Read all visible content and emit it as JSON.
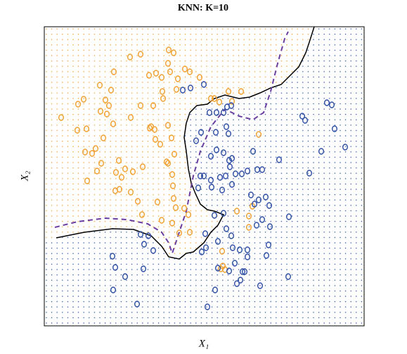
{
  "chart_data": {
    "type": "scatter",
    "title": "KNN: K=10",
    "xlabel": "X₁",
    "ylabel": "X₂",
    "xlim": [
      0,
      455
    ],
    "ylim": [
      0,
      425
    ],
    "series": [
      {
        "color": "#f0a030",
        "x": [
          24,
          48,
          56,
          47,
          60,
          58,
          68,
          73,
          84,
          61,
          75,
          81,
          80,
          92,
          89,
          98,
          79,
          99,
          122,
          137,
          149,
          159,
          167,
          155,
          168,
          169,
          177,
          184,
          176,
          179,
          188,
          190,
          200,
          207,
          221,
          123,
          137,
          150,
          152,
          157,
          158,
          176,
          181,
          165,
          174,
          176,
          185,
          182,
          183,
          106,
          102,
          115,
          126,
          140,
          107,
          101,
          110,
          123,
          133,
          139,
          161,
          184,
          187,
          199,
          205,
          182,
          167,
          192,
          207,
          242,
          249,
          262,
          267,
          280,
          305,
          291,
          296,
          291,
          274,
          253,
          254,
          251,
          257,
          237,
          95,
          87
        ],
        "y": [
          296,
          315,
          322,
          278,
          280,
          247,
          245,
          252,
          267,
          206,
          220,
          231,
          305,
          313,
          301,
          287,
          342,
          361,
          382,
          386,
          356,
          359,
          353,
          313,
          333,
          323,
          392,
          388,
          373,
          361,
          336,
          351,
          365,
          361,
          353,
          296,
          313,
          281,
          283,
          279,
          265,
          285,
          267,
          258,
          233,
          231,
          244,
          215,
          199,
          235,
          218,
          223,
          219,
          226,
          194,
          192,
          211,
          190,
          177,
          158,
          176,
          181,
          168,
          167,
          158,
          146,
          150,
          132,
          133,
          323,
          318,
          333,
          319,
          333,
          272,
          156,
          170,
          140,
          163,
          106,
          85,
          81,
          80,
          323,
          335,
          321
        ]
      },
      {
        "color": "#2e4fa3",
        "x": [
          197,
          208,
          227,
          235,
          245,
          255,
          260,
          266,
          223,
          244,
          259,
          245,
          255,
          237,
          263,
          264,
          272,
          250,
          258,
          238,
          237,
          227,
          219,
          253,
          267,
          281,
          289,
          303,
          310,
          294,
          299,
          305,
          315,
          320,
          310,
          302,
          321,
          348,
          334,
          367,
          371,
          402,
          409,
          413,
          394,
          377,
          428,
          137,
          148,
          142,
          155,
          97,
          101,
          115,
          141,
          98,
          132,
          232,
          243,
          247,
          263,
          271,
          285,
          279,
          274,
          282,
          278,
          289,
          289,
          268,
          266,
          247,
          259,
          230,
          224,
          229,
          319,
          316,
          307,
          347,
          267,
          222,
          216,
          262,
          297,
          242,
          255
        ],
        "y": [
          335,
          338,
          343,
          303,
          303,
          303,
          311,
          313,
          275,
          275,
          283,
          250,
          246,
          241,
          235,
          226,
          216,
          211,
          213,
          197,
          207,
          213,
          196,
          193,
          201,
          216,
          220,
          222,
          222,
          186,
          173,
          179,
          183,
          171,
          151,
          143,
          141,
          155,
          236,
          298,
          292,
          317,
          314,
          280,
          248,
          217,
          254,
          130,
          128,
          116,
          107,
          99,
          83,
          70,
          81,
          51,
          31,
          27,
          51,
          82,
          78,
          89,
          77,
          65,
          60,
          77,
          108,
          108,
          98,
          111,
          128,
          120,
          138,
          111,
          105,
          131,
          115,
          100,
          57,
          70,
          238,
          213,
          263,
          273,
          248,
          157,
          160
        ]
      }
    ],
    "boundaries": [
      {
        "color": "#000000",
        "dash": false,
        "x": [
          17,
          57,
          97,
          127,
          152,
          167,
          177,
          192,
          202,
          212,
          227,
          237,
          247,
          255,
          242,
          232,
          222,
          215,
          209,
          205,
          202,
          199,
          202,
          207,
          217,
          232,
          242,
          257,
          277,
          292,
          307,
          322,
          337,
          347,
          362,
          372,
          377,
          384
        ],
        "y": [
          125,
          133,
          138,
          137,
          128,
          113,
          98,
          95,
          103,
          105,
          118,
          133,
          143,
          158,
          163,
          165,
          173,
          188,
          203,
          223,
          248,
          268,
          288,
          303,
          313,
          315,
          323,
          328,
          323,
          325,
          331,
          338,
          343,
          353,
          368,
          388,
          403,
          425
        ]
      },
      {
        "color": "#6a3fa0",
        "dash": true,
        "x": [
          15,
          47,
          87,
          117,
          147,
          167,
          177,
          182,
          192,
          202,
          207,
          212,
          222,
          237,
          257,
          277,
          297,
          312,
          322,
          332,
          342,
          347
        ],
        "y": [
          140,
          148,
          153,
          151,
          145,
          133,
          118,
          103,
          133,
          163,
          188,
          213,
          248,
          283,
          308,
          298,
          293,
          303,
          333,
          373,
          408,
          418
        ]
      }
    ]
  }
}
